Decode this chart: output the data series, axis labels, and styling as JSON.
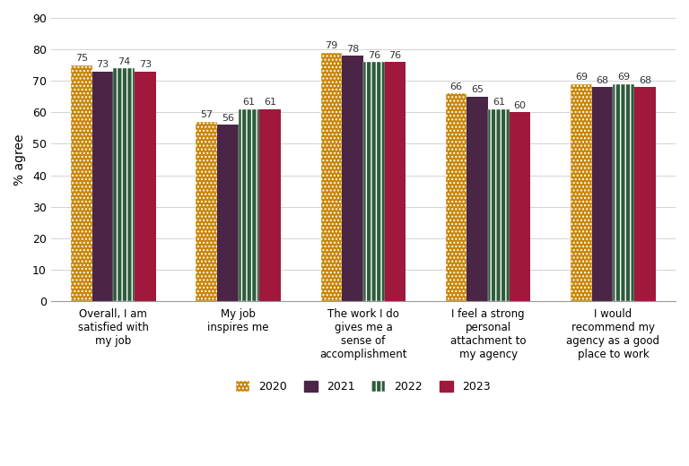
{
  "categories": [
    "Overall, I am\nsatisfied with\nmy job",
    "My job\ninspires me",
    "The work I do\ngives me a\nsense of\naccomplishment",
    "I feel a strong\npersonal\nattachment to\nmy agency",
    "I would\nrecommend my\nagency as a good\nplace to work"
  ],
  "years": [
    "2020",
    "2021",
    "2022",
    "2023"
  ],
  "values": [
    [
      75,
      73,
      74,
      73
    ],
    [
      57,
      56,
      61,
      61
    ],
    [
      79,
      78,
      76,
      76
    ],
    [
      66,
      65,
      61,
      60
    ],
    [
      69,
      68,
      69,
      68
    ]
  ],
  "colors": {
    "2020": "#C8860A",
    "2021": "#4A2545",
    "2022": "#2D5C3A",
    "2023": "#A0183C"
  },
  "ylabel": "% agree",
  "ylim": [
    0,
    90
  ],
  "yticks": [
    0,
    10,
    20,
    30,
    40,
    50,
    60,
    70,
    80,
    90
  ],
  "bar_width": 0.17,
  "label_fontsize": 8.0,
  "tick_fontsize": 9.0,
  "ylabel_fontsize": 10
}
